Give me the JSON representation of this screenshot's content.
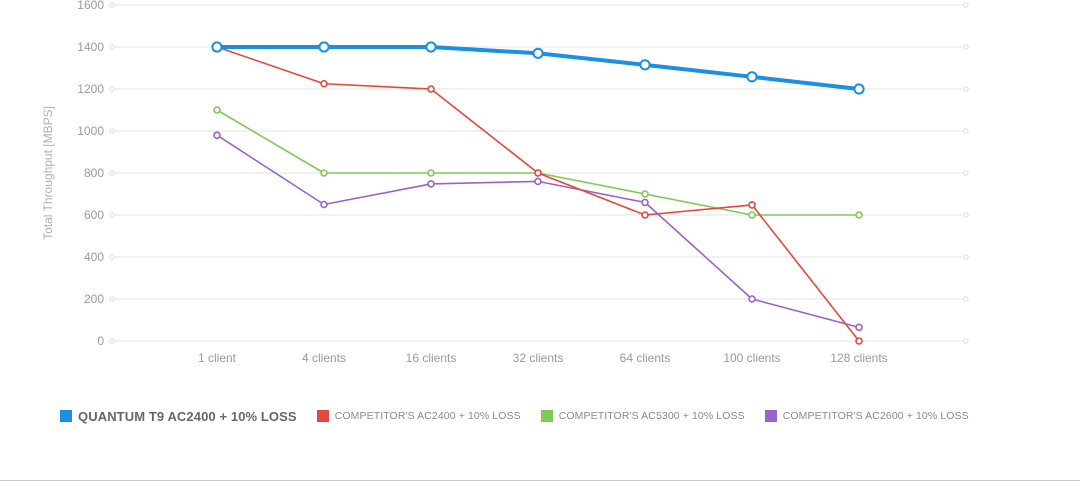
{
  "chart_data": {
    "type": "line",
    "xlabel": "",
    "ylabel": "Total Throughput [MBPS]",
    "ylim": [
      0,
      1600
    ],
    "yticks": [
      0,
      200,
      400,
      600,
      800,
      1000,
      1200,
      1400,
      1600
    ],
    "categories": [
      "1 client",
      "4 clients",
      "16 clients",
      "32 clients",
      "64 clients",
      "100 clients",
      "128 clients"
    ],
    "grid": true,
    "legend_position": "bottom-left",
    "series": [
      {
        "name": "QUANTUM T9 AC2400 + 10% LOSS",
        "color": "#1a8fe3",
        "values": [
          1400,
          1400,
          1400,
          1370,
          1315,
          1258,
          1200
        ]
      },
      {
        "name": "COMPETITOR'S AC2400 + 10% LOSS",
        "color": "#e4483b",
        "values": [
          1400,
          1225,
          1200,
          800,
          600,
          648,
          0
        ]
      },
      {
        "name": "COMPETITOR'S AC5300 + 10% LOSS",
        "color": "#7ec95a",
        "values": [
          1100,
          800,
          800,
          800,
          700,
          600,
          600
        ]
      },
      {
        "name": "COMPETITOR'S AC2600 + 10% LOSS",
        "color": "#9b62c9",
        "values": [
          980,
          650,
          748,
          760,
          660,
          200,
          65
        ]
      }
    ]
  }
}
